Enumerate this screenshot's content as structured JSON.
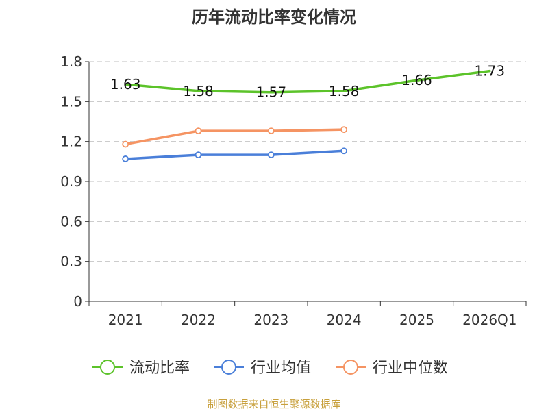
{
  "chart_data": {
    "type": "line",
    "title": "历年流动比率变化情况",
    "categories": [
      "2021",
      "2022",
      "2023",
      "2024",
      "2025",
      "2026Q1"
    ],
    "ylim": [
      0,
      1.8
    ],
    "yticks": [
      "0",
      "0.3",
      "0.6",
      "0.9",
      "1.2",
      "1.5",
      "1.8"
    ],
    "grid": true,
    "legend_position": "bottom",
    "series": [
      {
        "name": "流动比率",
        "color": "#5cc32a",
        "values": [
          1.63,
          1.58,
          1.57,
          1.58,
          1.66,
          1.73
        ],
        "labels": [
          "1.63",
          "1.58",
          "1.57",
          "1.58",
          "1.66",
          "1.73"
        ],
        "markers": false
      },
      {
        "name": "行业均值",
        "color": "#4a7fd9",
        "values": [
          1.07,
          1.1,
          1.1,
          1.13,
          null,
          null
        ],
        "markers": true
      },
      {
        "name": "行业中位数",
        "color": "#f59463",
        "values": [
          1.18,
          1.28,
          1.28,
          1.29,
          null,
          null
        ],
        "markers": true
      }
    ]
  },
  "source": "制图数据来自恒生聚源数据库"
}
